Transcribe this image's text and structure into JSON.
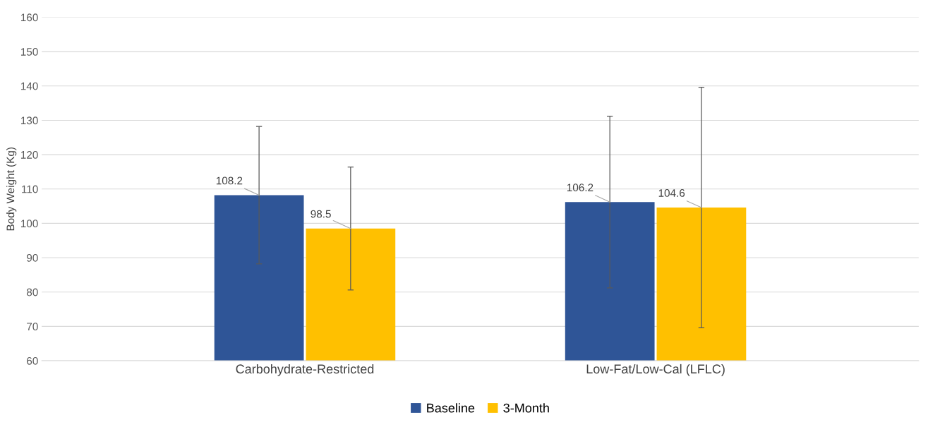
{
  "chart_data": {
    "type": "bar",
    "ylabel": "Body Weight (Kg)",
    "categories": [
      "Carbohydrate-Restricted",
      "Low-Fat/Low-Cal (LFLC)"
    ],
    "series": [
      {
        "name": "Baseline",
        "color": "#2f5597",
        "values": [
          108.2,
          106.2
        ],
        "errors": [
          20,
          25
        ]
      },
      {
        "name": "3-Month",
        "color": "#ffc000",
        "values": [
          98.5,
          104.6
        ],
        "errors": [
          17.9,
          35
        ]
      }
    ],
    "ylim": [
      60,
      160
    ],
    "yticks": [
      60,
      70,
      80,
      90,
      100,
      110,
      120,
      130,
      140,
      150,
      160
    ],
    "grid": "y",
    "legend": "bottom",
    "data_labels": true
  }
}
